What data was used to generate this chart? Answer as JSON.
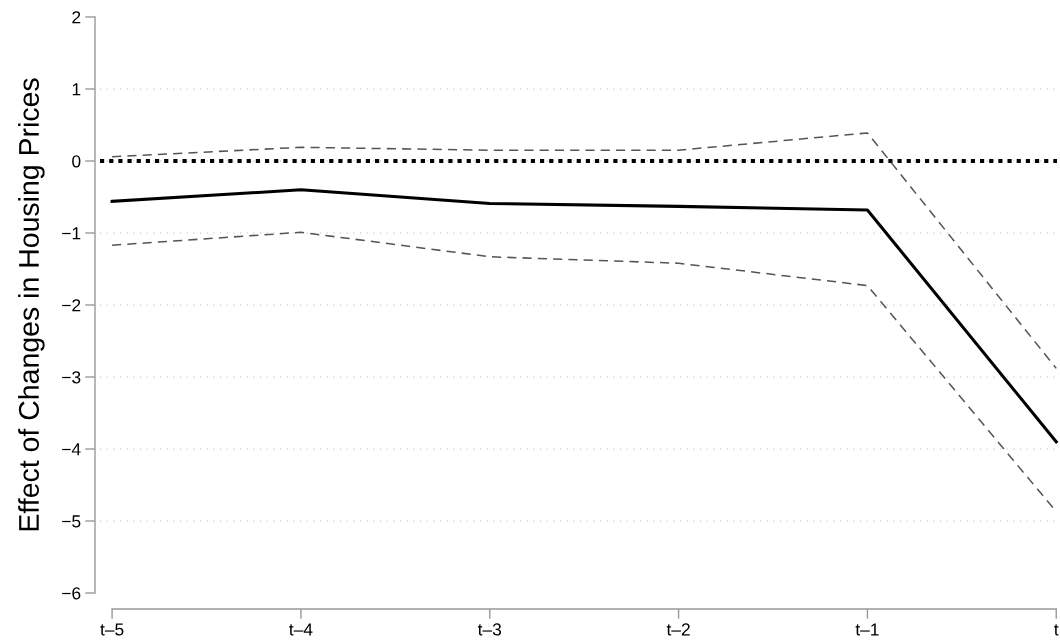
{
  "chart_data": {
    "type": "line",
    "ylabel": "Effect of Changes in Housing Prices",
    "categories": [
      "t–5",
      "t–4",
      "t–3",
      "t–2",
      "t–1",
      "t"
    ],
    "series": [
      {
        "color": "#000000",
        "line_style": "solid",
        "values": [
          -0.56,
          -0.4,
          -0.59,
          -0.63,
          -0.68,
          -3.9
        ]
      },
      {
        "color": "#555555",
        "line_style": "dashed",
        "values": [
          0.06,
          0.19,
          0.15,
          0.15,
          0.39,
          -2.88
        ]
      },
      {
        "color": "#555555",
        "line_style": "dashed",
        "values": [
          -1.17,
          -0.99,
          -1.33,
          -1.42,
          -1.73,
          -4.87
        ]
      }
    ],
    "ylim": [
      -6,
      2
    ],
    "yticks": [
      {
        "value": -6,
        "label": "−6"
      },
      {
        "value": -5,
        "label": "−5"
      },
      {
        "value": -4,
        "label": "−4"
      },
      {
        "value": -3,
        "label": "−3"
      },
      {
        "value": -2,
        "label": "−2"
      },
      {
        "value": -1,
        "label": "−1"
      },
      0,
      1,
      2
    ],
    "grid": "y",
    "ref_lines": [
      {
        "axis": "y",
        "value": 0,
        "color": "#000000",
        "line_style": "dotted"
      }
    ]
  }
}
